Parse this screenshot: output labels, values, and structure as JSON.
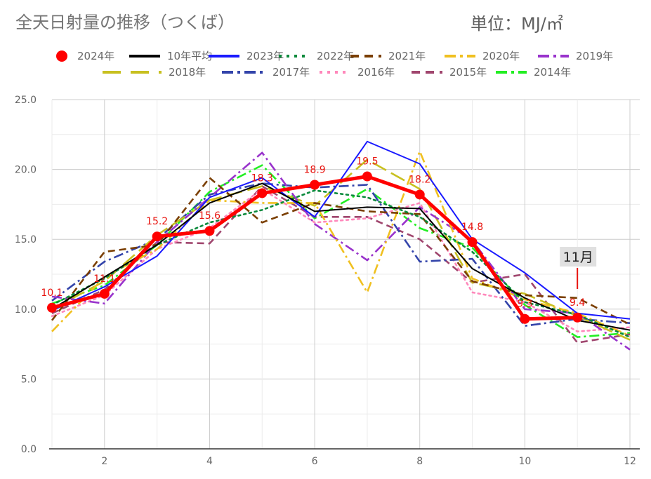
{
  "chart_data": {
    "type": "line",
    "title": "全天日射量の推移（つくば）",
    "unit_label": "単位：MJ/㎡",
    "xlabel": "",
    "ylabel": "",
    "x": [
      1,
      2,
      3,
      4,
      5,
      6,
      7,
      8,
      9,
      10,
      11,
      12
    ],
    "xticks": [
      2,
      4,
      6,
      8,
      10,
      12
    ],
    "xlim": [
      1,
      12
    ],
    "ylim": [
      0,
      25
    ],
    "yticks": [
      "0.0",
      "5.0",
      "10.0",
      "15.0",
      "20.0",
      "25.0"
    ],
    "grid": true,
    "legend_position": "top",
    "annotation": {
      "text": "11月",
      "x": 11
    },
    "series": [
      {
        "name": "2024年",
        "color": "#ff0000",
        "style": "solid-marker",
        "values": [
          10.1,
          11.1,
          15.2,
          15.6,
          18.3,
          18.9,
          19.5,
          18.2,
          14.8,
          9.3,
          9.4,
          null
        ],
        "labels": [
          "10.1",
          "11.1",
          "15.2",
          "15.6",
          "18.3",
          "18.9",
          "19.5",
          "18.2",
          "14.8",
          "9.3",
          "9.4",
          ""
        ]
      },
      {
        "name": "10年平均",
        "color": "#000000",
        "style": "solid",
        "values": [
          10.0,
          12.3,
          14.6,
          17.6,
          19.0,
          17.0,
          17.3,
          17.2,
          12.9,
          10.8,
          9.2,
          8.5
        ]
      },
      {
        "name": "2023年",
        "color": "#1a1aff",
        "style": "solid",
        "values": [
          9.9,
          11.6,
          13.8,
          18.0,
          19.4,
          16.6,
          22.0,
          20.4,
          15.0,
          12.6,
          9.7,
          9.3
        ]
      },
      {
        "name": "2022年",
        "color": "#0b8a3c",
        "style": "dot",
        "values": [
          10.3,
          12.2,
          14.6,
          16.2,
          17.1,
          18.5,
          18.0,
          16.6,
          14.1,
          10.5,
          9.6,
          8.0
        ]
      },
      {
        "name": "2021年",
        "color": "#7a3e00",
        "style": "dash",
        "values": [
          9.2,
          14.1,
          14.6,
          19.4,
          16.2,
          17.6,
          17.0,
          16.8,
          12.0,
          11.0,
          10.8,
          8.9
        ]
      },
      {
        "name": "2020年",
        "color": "#f0c020",
        "style": "dashdot",
        "values": [
          8.4,
          12.3,
          14.3,
          17.8,
          17.6,
          17.6,
          11.2,
          21.3,
          12.2,
          10.7,
          9.7,
          8.1
        ]
      },
      {
        "name": "2019年",
        "color": "#9933cc",
        "style": "dashdot",
        "values": [
          10.9,
          10.4,
          14.8,
          18.0,
          21.2,
          16.1,
          13.5,
          17.3,
          14.9,
          10.0,
          9.7,
          7.1
        ]
      },
      {
        "name": "2018年",
        "color": "#c8c020",
        "style": "longdash",
        "values": [
          10.0,
          12.0,
          15.3,
          17.8,
          18.8,
          17.4,
          20.7,
          18.6,
          11.9,
          11.1,
          9.5,
          7.8
        ]
      },
      {
        "name": "2017年",
        "color": "#3344aa",
        "style": "dashdot",
        "values": [
          10.6,
          13.4,
          15.0,
          18.2,
          19.0,
          18.7,
          18.9,
          13.4,
          13.6,
          8.8,
          9.3,
          9.0
        ]
      },
      {
        "name": "2016年",
        "color": "#ff88bb",
        "style": "dot",
        "values": [
          9.5,
          11.0,
          14.3,
          15.8,
          18.6,
          16.2,
          16.5,
          17.6,
          11.2,
          10.5,
          8.4,
          8.7
        ]
      },
      {
        "name": "2015年",
        "color": "#a0466e",
        "style": "dash",
        "values": [
          9.7,
          11.4,
          14.8,
          14.7,
          18.8,
          16.6,
          16.6,
          15.0,
          11.9,
          12.5,
          7.6,
          8.2
        ]
      },
      {
        "name": "2014年",
        "color": "#22ee22",
        "style": "dashdot",
        "values": [
          10.4,
          11.7,
          14.6,
          18.4,
          20.3,
          16.5,
          18.6,
          15.8,
          14.4,
          10.3,
          8.0,
          8.3
        ]
      }
    ]
  }
}
